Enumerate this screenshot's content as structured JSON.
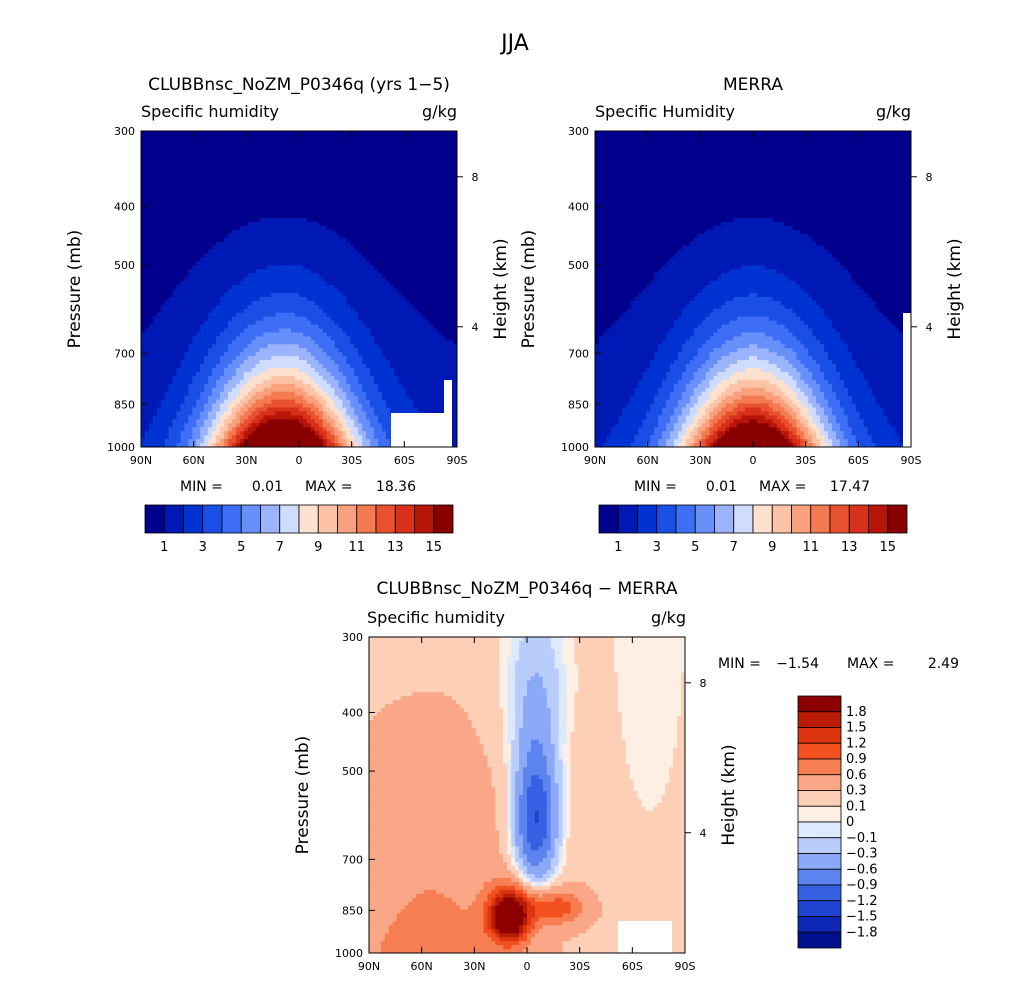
{
  "figure_title": "JJA",
  "colorbar_levels_abs": [
    "1",
    "3",
    "5",
    "7",
    "9",
    "11",
    "13",
    "15"
  ],
  "colorbar_levels_diff": [
    "1.8",
    "1.5",
    "1.2",
    "0.9",
    "0.6",
    "0.3",
    "0.1",
    "0",
    "−0.1",
    "−0.3",
    "−0.6",
    "−0.9",
    "−1.2",
    "−1.5",
    "−1.8"
  ],
  "abs_colors": [
    "#00008c",
    "#0019b4",
    "#0033d2",
    "#1a4fe6",
    "#3e6ef5",
    "#6890fa",
    "#9bb4fb",
    "#cfdcfd",
    "#fde1cf",
    "#fcc3a6",
    "#f9a07c",
    "#f47a52",
    "#e9522f",
    "#d8301a",
    "#b81509",
    "#880000"
  ],
  "diff_colors": [
    "#8c0000",
    "#b81b06",
    "#dc350f",
    "#f2511f",
    "#f77e52",
    "#f9a786",
    "#fdcfb6",
    "#fdefe3",
    "#dde9fd",
    "#b8cdfb",
    "#8ba9f6",
    "#5d83ef",
    "#3661e3",
    "#1e43cf",
    "#0d28b4",
    "#00108c"
  ],
  "chart_data": [
    {
      "type": "heatmap",
      "title": "CLUBBnsc_NoZM_P0346q (yrs 1−5)",
      "left_label": "Specific humidity",
      "right_label": "g/kg",
      "xlabel": "",
      "ylabel": "Pressure (mb)",
      "ylabel_right": "Height (km)",
      "x_ticks": [
        "90N",
        "60N",
        "30N",
        "0",
        "30S",
        "60S",
        "90S"
      ],
      "x_range": [
        90,
        -90
      ],
      "y_ticks": [
        "300",
        "400",
        "500",
        "700",
        "850",
        "1000"
      ],
      "y_range": [
        300,
        1000
      ],
      "height_ticks": [
        "8",
        "4"
      ],
      "min_label": "MIN =",
      "min_value": "0.01",
      "max_label": "MAX =",
      "max_value": "18.36",
      "peak_lat": 10,
      "peak_value": 18.36,
      "levels": [
        1,
        2,
        3,
        4,
        5,
        6,
        7,
        8,
        9,
        10,
        11,
        12,
        13,
        14,
        15
      ]
    },
    {
      "type": "heatmap",
      "title": "MERRA",
      "left_label": "Specific Humidity",
      "right_label": "g/kg",
      "xlabel": "",
      "ylabel": "Pressure (mb)",
      "ylabel_right": "Height (km)",
      "x_ticks": [
        "90N",
        "60N",
        "30N",
        "0",
        "30S",
        "60S",
        "90S"
      ],
      "x_range": [
        90,
        -90
      ],
      "y_ticks": [
        "300",
        "400",
        "500",
        "700",
        "850",
        "1000"
      ],
      "y_range": [
        300,
        1000
      ],
      "height_ticks": [
        "8",
        "4"
      ],
      "min_label": "MIN =",
      "min_value": "0.01",
      "max_label": "MAX =",
      "max_value": "17.47",
      "peak_lat": 0,
      "peak_value": 17.47,
      "levels": [
        1,
        2,
        3,
        4,
        5,
        6,
        7,
        8,
        9,
        10,
        11,
        12,
        13,
        14,
        15
      ]
    },
    {
      "type": "heatmap",
      "title": "CLUBBnsc_NoZM_P0346q − MERRA",
      "left_label": "Specific humidity",
      "right_label": "g/kg",
      "xlabel": "",
      "ylabel": "Pressure (mb)",
      "ylabel_right": "Height (km)",
      "x_ticks": [
        "90N",
        "60N",
        "30N",
        "0",
        "30S",
        "60S",
        "90S"
      ],
      "x_range": [
        90,
        -90
      ],
      "y_ticks": [
        "300",
        "400",
        "500",
        "700",
        "850",
        "1000"
      ],
      "y_range": [
        300,
        1000
      ],
      "height_ticks": [
        "8",
        "4"
      ],
      "min_label": "MIN =",
      "min_value": "−1.54",
      "max_label": "MAX =",
      "max_value": "2.49",
      "levels": [
        -1.8,
        -1.5,
        -1.2,
        -0.9,
        -0.6,
        -0.3,
        -0.1,
        0,
        0.1,
        0.3,
        0.6,
        0.9,
        1.2,
        1.5,
        1.8
      ]
    }
  ]
}
